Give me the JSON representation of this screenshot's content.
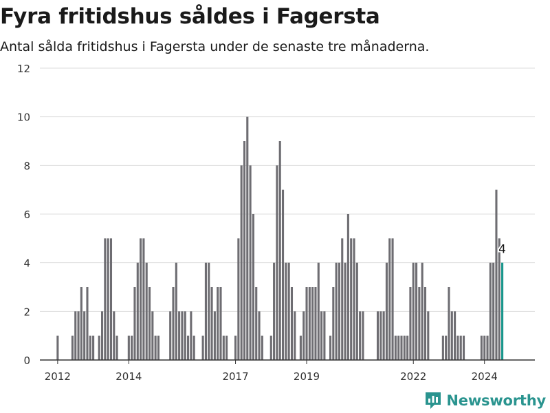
{
  "header": {
    "title": "Fyra fritidshus såldes i Fagersta",
    "subtitle": "Antal sålda fritidshus i Fagersta under de senaste tre månaderna."
  },
  "brand": {
    "name": "Newsworthy",
    "icon": "newsworthy-logo-icon",
    "color": "#2a948f"
  },
  "colors": {
    "bar": "#6e6d72",
    "highlight": "#1a968c",
    "grid": "#dddddd",
    "axis": "#333333"
  },
  "chart_data": {
    "type": "bar",
    "title": "Fyra fritidshus såldes i Fagersta",
    "subtitle": "Antal sålda fritidshus i Fagersta under de senaste tre månaderna.",
    "xlabel": "",
    "ylabel": "",
    "ylim": [
      0,
      12
    ],
    "yticks": [
      0,
      2,
      4,
      6,
      8,
      10,
      12
    ],
    "x_range": [
      "2011-07",
      "2025-06"
    ],
    "xticks": [
      {
        "label": "2012",
        "value": "2012-01"
      },
      {
        "label": "2014",
        "value": "2014-01"
      },
      {
        "label": "2017",
        "value": "2017-01"
      },
      {
        "label": "2019",
        "value": "2019-01"
      },
      {
        "label": "2022",
        "value": "2022-01"
      },
      {
        "label": "2024",
        "value": "2024-01"
      }
    ],
    "grid": true,
    "legend": "none",
    "start_month": "2012-01",
    "values": [
      1,
      0,
      0,
      0,
      0,
      1,
      2,
      2,
      3,
      2,
      3,
      1,
      1,
      0,
      1,
      2,
      5,
      5,
      5,
      2,
      1,
      0,
      0,
      0,
      1,
      1,
      3,
      4,
      5,
      5,
      4,
      3,
      2,
      1,
      1,
      0,
      0,
      0,
      2,
      3,
      4,
      2,
      2,
      2,
      1,
      2,
      1,
      0,
      0,
      1,
      4,
      4,
      3,
      2,
      3,
      3,
      1,
      1,
      0,
      0,
      1,
      5,
      8,
      9,
      10,
      8,
      6,
      3,
      2,
      1,
      0,
      0,
      1,
      4,
      8,
      9,
      7,
      4,
      4,
      3,
      2,
      0,
      1,
      2,
      3,
      3,
      3,
      3,
      4,
      2,
      2,
      0,
      1,
      3,
      4,
      4,
      5,
      4,
      6,
      5,
      5,
      4,
      2,
      2,
      0,
      0,
      0,
      0,
      2,
      2,
      2,
      4,
      5,
      5,
      1,
      1,
      1,
      1,
      1,
      3,
      4,
      4,
      3,
      4,
      3,
      2,
      0,
      0,
      0,
      0,
      1,
      1,
      3,
      2,
      2,
      1,
      1,
      1,
      0,
      0,
      0,
      0,
      0,
      1,
      1,
      1,
      4,
      4,
      7,
      5,
      4
    ],
    "highlight_last": true,
    "annotation": {
      "label": "4",
      "value": 4
    }
  }
}
